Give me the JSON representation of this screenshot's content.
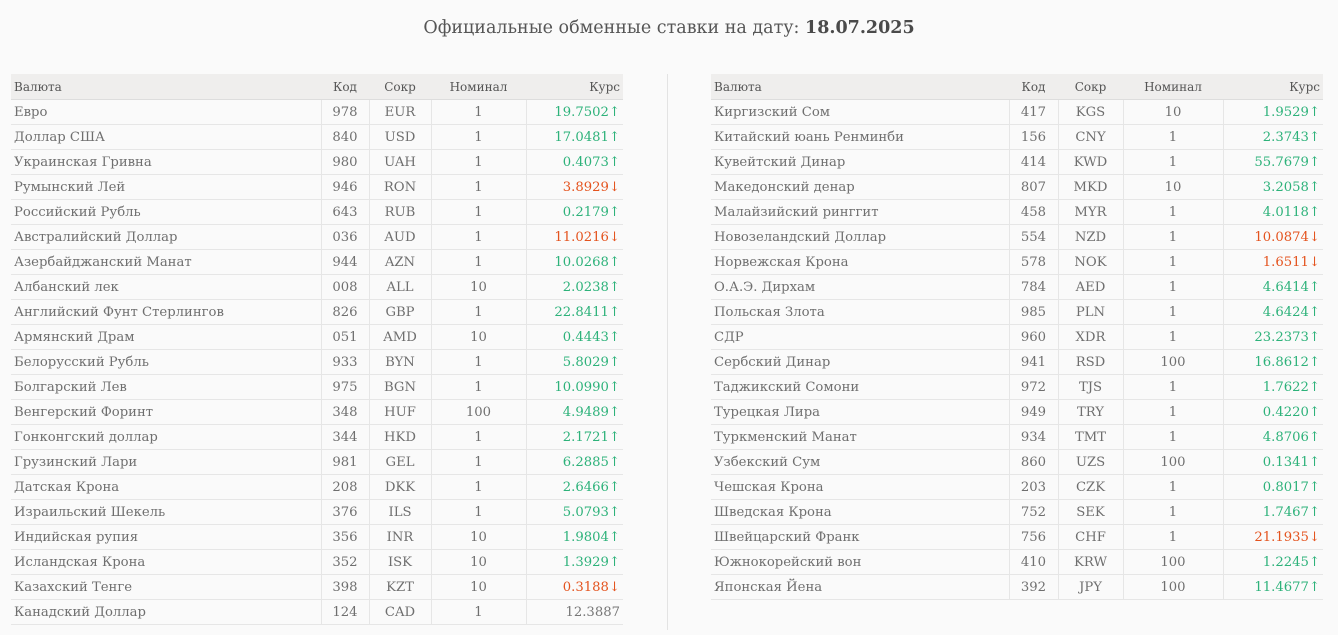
{
  "header": {
    "title_prefix": "Официальные обменные ставки на дату:",
    "date": "18.07.2025"
  },
  "columns": {
    "name": "Валюта",
    "code": "Код",
    "short": "Сокр",
    "nominal": "Номинал",
    "rate": "Курс"
  },
  "colors": {
    "up": "#2db27a",
    "down": "#e4531e",
    "neutral": "#777777"
  },
  "left_rows": [
    {
      "name": "Евро",
      "code": "978",
      "short": "EUR",
      "nominal": "1",
      "rate": "19.7502",
      "trend": "up"
    },
    {
      "name": "Доллар США",
      "code": "840",
      "short": "USD",
      "nominal": "1",
      "rate": "17.0481",
      "trend": "up"
    },
    {
      "name": "Украинская Гривна",
      "code": "980",
      "short": "UAH",
      "nominal": "1",
      "rate": "0.4073",
      "trend": "up"
    },
    {
      "name": "Румынский Лей",
      "code": "946",
      "short": "RON",
      "nominal": "1",
      "rate": "3.8929",
      "trend": "down"
    },
    {
      "name": "Российский Рубль",
      "code": "643",
      "short": "RUB",
      "nominal": "1",
      "rate": "0.2179",
      "trend": "up"
    },
    {
      "name": "Австралийский Доллар",
      "code": "036",
      "short": "AUD",
      "nominal": "1",
      "rate": "11.0216",
      "trend": "down"
    },
    {
      "name": "Азербайджанский Манат",
      "code": "944",
      "short": "AZN",
      "nominal": "1",
      "rate": "10.0268",
      "trend": "up"
    },
    {
      "name": "Албанский лек",
      "code": "008",
      "short": "ALL",
      "nominal": "10",
      "rate": "2.0238",
      "trend": "up"
    },
    {
      "name": "Английский Фунт Стерлингов",
      "code": "826",
      "short": "GBP",
      "nominal": "1",
      "rate": "22.8411",
      "trend": "up"
    },
    {
      "name": "Армянский Драм",
      "code": "051",
      "short": "AMD",
      "nominal": "10",
      "rate": "0.4443",
      "trend": "up"
    },
    {
      "name": "Белорусский Рубль",
      "code": "933",
      "short": "BYN",
      "nominal": "1",
      "rate": "5.8029",
      "trend": "up"
    },
    {
      "name": "Болгарский Лев",
      "code": "975",
      "short": "BGN",
      "nominal": "1",
      "rate": "10.0990",
      "trend": "up"
    },
    {
      "name": "Венгерский Форинт",
      "code": "348",
      "short": "HUF",
      "nominal": "100",
      "rate": "4.9489",
      "trend": "up"
    },
    {
      "name": "Гонконгский доллар",
      "code": "344",
      "short": "HKD",
      "nominal": "1",
      "rate": "2.1721",
      "trend": "up"
    },
    {
      "name": "Грузинский Лари",
      "code": "981",
      "short": "GEL",
      "nominal": "1",
      "rate": "6.2885",
      "trend": "up"
    },
    {
      "name": "Датская Крона",
      "code": "208",
      "short": "DKK",
      "nominal": "1",
      "rate": "2.6466",
      "trend": "up"
    },
    {
      "name": "Израильский Шекель",
      "code": "376",
      "short": "ILS",
      "nominal": "1",
      "rate": "5.0793",
      "trend": "up"
    },
    {
      "name": "Индийская рупия",
      "code": "356",
      "short": "INR",
      "nominal": "10",
      "rate": "1.9804",
      "trend": "up"
    },
    {
      "name": "Исландская Крона",
      "code": "352",
      "short": "ISK",
      "nominal": "10",
      "rate": "1.3929",
      "trend": "up"
    },
    {
      "name": "Казахский Тенге",
      "code": "398",
      "short": "KZT",
      "nominal": "10",
      "rate": "0.3188",
      "trend": "down"
    },
    {
      "name": "Канадский Доллар",
      "code": "124",
      "short": "CAD",
      "nominal": "1",
      "rate": "12.3887",
      "trend": "none"
    }
  ],
  "right_rows": [
    {
      "name": "Киргизский Сом",
      "code": "417",
      "short": "KGS",
      "nominal": "10",
      "rate": "1.9529",
      "trend": "up"
    },
    {
      "name": "Китайский юань Ренминби",
      "code": "156",
      "short": "CNY",
      "nominal": "1",
      "rate": "2.3743",
      "trend": "up"
    },
    {
      "name": "Кувейтский Динар",
      "code": "414",
      "short": "KWD",
      "nominal": "1",
      "rate": "55.7679",
      "trend": "up"
    },
    {
      "name": "Македонский денар",
      "code": "807",
      "short": "MKD",
      "nominal": "10",
      "rate": "3.2058",
      "trend": "up"
    },
    {
      "name": "Малайзийский ринггит",
      "code": "458",
      "short": "MYR",
      "nominal": "1",
      "rate": "4.0118",
      "trend": "up"
    },
    {
      "name": "Новозеландский Доллар",
      "code": "554",
      "short": "NZD",
      "nominal": "1",
      "rate": "10.0874",
      "trend": "down"
    },
    {
      "name": "Норвежская Крона",
      "code": "578",
      "short": "NOK",
      "nominal": "1",
      "rate": "1.6511",
      "trend": "down"
    },
    {
      "name": "О.А.Э. Дирхам",
      "code": "784",
      "short": "AED",
      "nominal": "1",
      "rate": "4.6414",
      "trend": "up"
    },
    {
      "name": "Польская Злота",
      "code": "985",
      "short": "PLN",
      "nominal": "1",
      "rate": "4.6424",
      "trend": "up"
    },
    {
      "name": "СДР",
      "code": "960",
      "short": "XDR",
      "nominal": "1",
      "rate": "23.2373",
      "trend": "up"
    },
    {
      "name": "Сербский Динар",
      "code": "941",
      "short": "RSD",
      "nominal": "100",
      "rate": "16.8612",
      "trend": "up"
    },
    {
      "name": "Таджикский Сомони",
      "code": "972",
      "short": "TJS",
      "nominal": "1",
      "rate": "1.7622",
      "trend": "up"
    },
    {
      "name": "Турецкая Лира",
      "code": "949",
      "short": "TRY",
      "nominal": "1",
      "rate": "0.4220",
      "trend": "up"
    },
    {
      "name": "Туркменский Манат",
      "code": "934",
      "short": "TMT",
      "nominal": "1",
      "rate": "4.8706",
      "trend": "up"
    },
    {
      "name": "Узбекский Сум",
      "code": "860",
      "short": "UZS",
      "nominal": "100",
      "rate": "0.1341",
      "trend": "up"
    },
    {
      "name": "Чешская Крона",
      "code": "203",
      "short": "CZK",
      "nominal": "1",
      "rate": "0.8017",
      "trend": "up"
    },
    {
      "name": "Шведская Крона",
      "code": "752",
      "short": "SEK",
      "nominal": "1",
      "rate": "1.7467",
      "trend": "up"
    },
    {
      "name": "Швейцарский Франк",
      "code": "756",
      "short": "CHF",
      "nominal": "1",
      "rate": "21.1935",
      "trend": "down"
    },
    {
      "name": "Южнокорейский вон",
      "code": "410",
      "short": "KRW",
      "nominal": "100",
      "rate": "1.2245",
      "trend": "up"
    },
    {
      "name": "Японская Йена",
      "code": "392",
      "short": "JPY",
      "nominal": "100",
      "rate": "11.4677",
      "trend": "up"
    }
  ]
}
